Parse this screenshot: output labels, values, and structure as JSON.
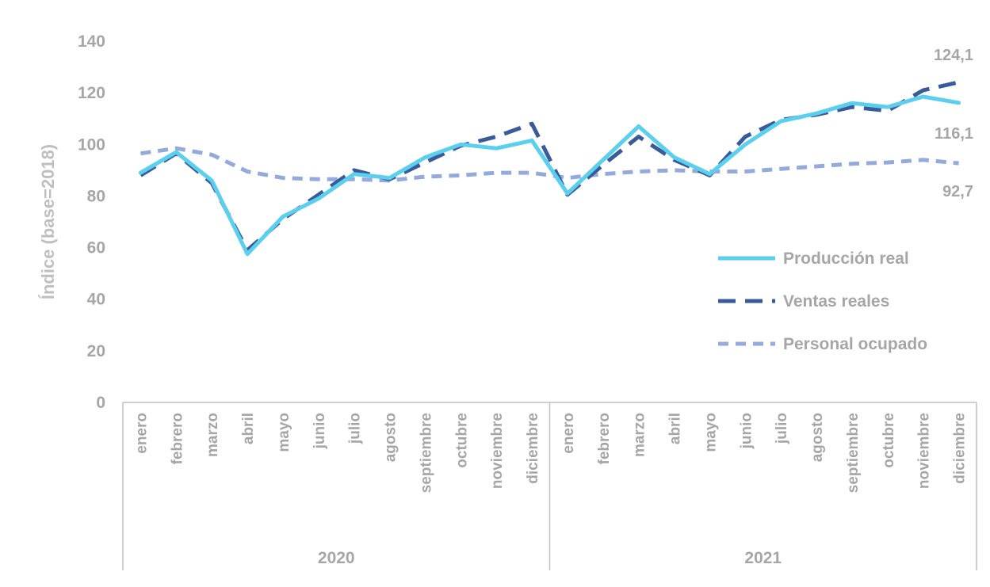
{
  "chart_data": {
    "type": "line",
    "title": "",
    "ylabel": "Índice (base=2018)",
    "xlabel": "",
    "ylim": [
      0,
      140
    ],
    "yticks": [
      "0",
      "20",
      "40",
      "60",
      "80",
      "100",
      "120",
      "140"
    ],
    "categories": [
      "enero",
      "febrero",
      "marzo",
      "abril",
      "mayo",
      "junio",
      "julio",
      "agosto",
      "septiembre",
      "octubre",
      "noviembre",
      "diciembre",
      "enero",
      "febrero",
      "marzo",
      "abril",
      "mayo",
      "junio",
      "julio",
      "agosto",
      "septiembre",
      "octubre",
      "noviembre",
      "diciembre"
    ],
    "groups": [
      {
        "label": "2020",
        "count": 12
      },
      {
        "label": "2021",
        "count": 12
      }
    ],
    "grid": false,
    "legend_position": "right",
    "series": [
      {
        "name": "Producción real",
        "color": "#5bcfee",
        "dash": "solid",
        "values": [
          89,
          97,
          86,
          57.5,
          72,
          79,
          88.5,
          87,
          95,
          100,
          98.5,
          101.5,
          81,
          94,
          107,
          95,
          88.5,
          100,
          109,
          112,
          116,
          114.5,
          118.5,
          116.1
        ]
      },
      {
        "name": "Ventas reales",
        "color": "#3a5b9a",
        "dash": "long",
        "values": [
          88,
          96.5,
          85,
          59,
          71,
          80.5,
          90,
          86.5,
          93,
          99.5,
          103,
          108,
          80.5,
          92,
          103,
          94,
          88,
          103,
          109.5,
          111.5,
          114.5,
          113,
          121,
          124.1
        ]
      },
      {
        "name": "Personal ocupado",
        "color": "#94a9dc",
        "dash": "short",
        "values": [
          96.5,
          98.5,
          96,
          89.5,
          87,
          86.5,
          86.5,
          86,
          87.5,
          88,
          89,
          89,
          87,
          88.5,
          89.5,
          90,
          89.5,
          89.5,
          90.5,
          91.5,
          92.5,
          93,
          94,
          92.7
        ]
      }
    ],
    "annotations": [
      {
        "text": "124,1",
        "series": "Ventas reales",
        "index": 23
      },
      {
        "text": "116,1",
        "series": "Producción real",
        "index": 23
      },
      {
        "text": "92,7",
        "series": "Personal ocupado",
        "index": 23
      }
    ]
  }
}
